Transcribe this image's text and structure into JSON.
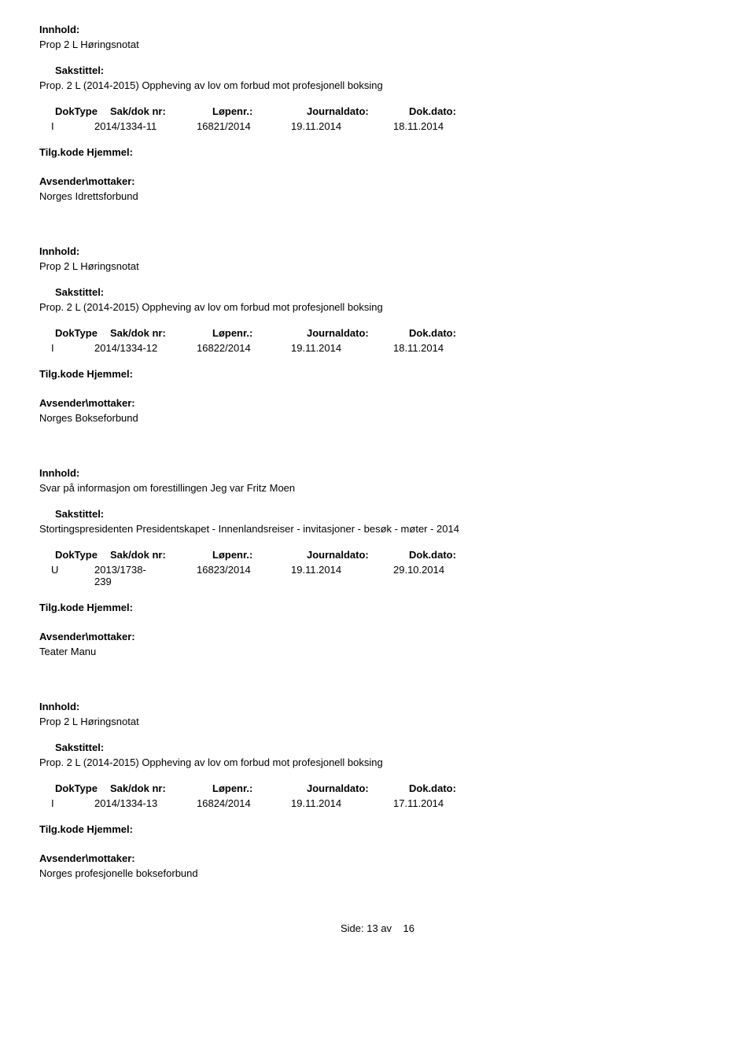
{
  "labels": {
    "innhold": "Innhold:",
    "sakstittel": "Sakstittel:",
    "doktype": "DokType",
    "sakdoknr": "Sak/dok nr:",
    "lopenr": "Løpenr.:",
    "journaldato": "Journaldato:",
    "dokdato": "Dok.dato:",
    "tilgkode": "Tilg.kode",
    "hjemmel": "Hjemmel:",
    "avsender": "Avsender\\mottaker:"
  },
  "entries": [
    {
      "innhold": "Prop 2 L Høringsnotat",
      "sakstittel": "Prop. 2 L (2014-2015) Oppheving av lov om forbud mot profesjonell boksing",
      "doktype": "I",
      "sakdoknr": "2014/1334-11",
      "lopenr": "16821/2014",
      "journaldato": "19.11.2014",
      "dokdato": "18.11.2014",
      "avsender": "Norges Idrettsforbund"
    },
    {
      "innhold": "Prop 2 L Høringsnotat",
      "sakstittel": "Prop. 2 L (2014-2015) Oppheving av lov om forbud mot profesjonell boksing",
      "doktype": "I",
      "sakdoknr": "2014/1334-12",
      "lopenr": "16822/2014",
      "journaldato": "19.11.2014",
      "dokdato": "18.11.2014",
      "avsender": "Norges Bokseforbund"
    },
    {
      "innhold": "Svar på informasjon om forestillingen Jeg var Fritz Moen",
      "sakstittel": "Stortingspresidenten Presidentskapet - Innenlandsreiser - invitasjoner - besøk - møter - 2014",
      "doktype": "U",
      "sakdoknr": "2013/1738-239",
      "sakdoknr_multiline": true,
      "lopenr": "16823/2014",
      "journaldato": "19.11.2014",
      "dokdato": "29.10.2014",
      "avsender": "Teater Manu"
    },
    {
      "innhold": "Prop 2 L Høringsnotat",
      "sakstittel": "Prop. 2 L (2014-2015) Oppheving av lov om forbud mot profesjonell boksing",
      "doktype": "I",
      "sakdoknr": "2014/1334-13",
      "lopenr": "16824/2014",
      "journaldato": "19.11.2014",
      "dokdato": "17.11.2014",
      "avsender": "Norges profesjonelle bokseforbund"
    }
  ],
  "footer": {
    "side_label": "Side:",
    "page": "13",
    "av": "av",
    "total": "16"
  }
}
